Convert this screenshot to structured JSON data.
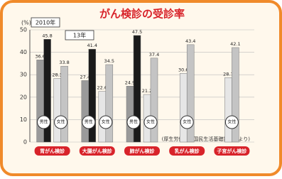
{
  "chart_data": {
    "type": "bar",
    "title": "がん検診の受診率",
    "y_label": "(%)",
    "source": "(厚生労働省「国民生活基礎調査」より)",
    "categories": [
      "胃がん検診",
      "大腸がん検診",
      "肺がん検診",
      "乳がん検診",
      "子宮がん検診"
    ],
    "series": [
      {
        "name": "2010年",
        "sex": "男性",
        "color": "#9a9a9a",
        "values": [
          36.6,
          27.4,
          24.9,
          null,
          null
        ]
      },
      {
        "name": "13年",
        "sex": "男性",
        "color": "#1a1a1a",
        "values": [
          45.8,
          41.4,
          47.5,
          null,
          null
        ]
      },
      {
        "name": "2010年",
        "sex": "女性",
        "color": "#e6e6e6",
        "values": [
          28.3,
          22.6,
          21.2,
          30.6,
          28.7
        ]
      },
      {
        "name": "13年",
        "sex": "女性",
        "color": "#c4c4c4",
        "values": [
          33.8,
          34.5,
          37.4,
          43.4,
          42.1
        ]
      }
    ],
    "ylim": [
      0,
      50
    ],
    "yticks": [
      0,
      10,
      20,
      30,
      40,
      50
    ],
    "grid": true
  }
}
